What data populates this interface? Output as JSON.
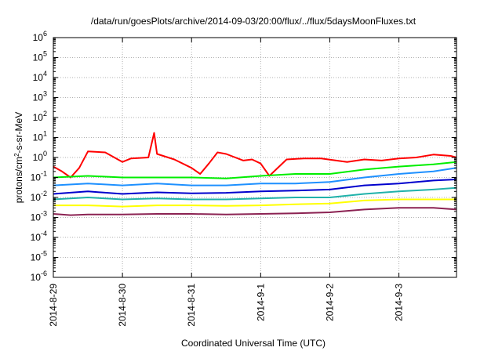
{
  "chart_data": {
    "type": "line",
    "title": "/data/run/goesPlots/archive/2014-09-03/20:00/flux/../flux/5daysMoonFluxes.txt",
    "xlabel": "Coordinated Universal Time (UTC)",
    "ylabel": {
      "prefix": "protons/cm",
      "sup": "2",
      "suffix": "-s-sr-MeV"
    },
    "y_scale": "log",
    "ylim": [
      1e-06,
      1000000.0
    ],
    "y_ticks": [
      {
        "value": 1e-06,
        "base": "10",
        "exp": "-6"
      },
      {
        "value": 1e-05,
        "base": "10",
        "exp": "-5"
      },
      {
        "value": 0.0001,
        "base": "10",
        "exp": "-4"
      },
      {
        "value": 0.001,
        "base": "10",
        "exp": "-3"
      },
      {
        "value": 0.01,
        "base": "10",
        "exp": "-2"
      },
      {
        "value": 0.1,
        "base": "10",
        "exp": "-1"
      },
      {
        "value": 1,
        "base": "10",
        "exp": "0"
      },
      {
        "value": 10,
        "base": "10",
        "exp": "1"
      },
      {
        "value": 100,
        "base": "10",
        "exp": "2"
      },
      {
        "value": 1000,
        "base": "10",
        "exp": "3"
      },
      {
        "value": 10000,
        "base": "10",
        "exp": "4"
      },
      {
        "value": 100000,
        "base": "10",
        "exp": "5"
      },
      {
        "value": 1000000,
        "base": "10",
        "exp": "6"
      }
    ],
    "x_ticks": [
      "2014-8-29",
      "2014-8-30",
      "2014-8-31",
      "2014-9-1",
      "2014-9-2",
      "2014-9-3"
    ],
    "xlim": [
      "2014-08-29T00:00",
      "2014-09-03T20:00"
    ],
    "grid": true,
    "legend": "none",
    "series": [
      {
        "color": "#ff0000",
        "points": [
          [
            "2014-08-29T00:00",
            0.35
          ],
          [
            "2014-08-29T03:00",
            0.2
          ],
          [
            "2014-08-29T06:00",
            0.1
          ],
          [
            "2014-08-29T09:00",
            0.3
          ],
          [
            "2014-08-29T12:00",
            2.0
          ],
          [
            "2014-08-29T18:00",
            1.8
          ],
          [
            "2014-08-30T00:00",
            0.6
          ],
          [
            "2014-08-30T03:00",
            0.9
          ],
          [
            "2014-08-30T09:00",
            1.0
          ],
          [
            "2014-08-30T11:00",
            17
          ],
          [
            "2014-08-30T12:00",
            1.5
          ],
          [
            "2014-08-30T18:00",
            0.8
          ],
          [
            "2014-08-31T00:00",
            0.3
          ],
          [
            "2014-08-31T03:00",
            0.15
          ],
          [
            "2014-08-31T06:00",
            0.5
          ],
          [
            "2014-08-31T09:00",
            1.8
          ],
          [
            "2014-08-31T12:00",
            1.5
          ],
          [
            "2014-08-31T18:00",
            0.7
          ],
          [
            "2014-08-31T21:00",
            0.8
          ],
          [
            "2014-09-01T00:00",
            0.5
          ],
          [
            "2014-09-01T03:00",
            0.12
          ],
          [
            "2014-09-01T09:00",
            0.8
          ],
          [
            "2014-09-01T15:00",
            0.9
          ],
          [
            "2014-09-01T21:00",
            0.9
          ],
          [
            "2014-09-02T06:00",
            0.6
          ],
          [
            "2014-09-02T12:00",
            0.8
          ],
          [
            "2014-09-02T18:00",
            0.7
          ],
          [
            "2014-09-03T00:00",
            0.9
          ],
          [
            "2014-09-03T06:00",
            1.0
          ],
          [
            "2014-09-03T12:00",
            1.4
          ],
          [
            "2014-09-03T18:00",
            1.2
          ],
          [
            "2014-09-03T20:00",
            1.0
          ]
        ]
      },
      {
        "color": "#00ee00",
        "points": [
          [
            "2014-08-29T00:00",
            0.1
          ],
          [
            "2014-08-29T12:00",
            0.12
          ],
          [
            "2014-08-30T00:00",
            0.1
          ],
          [
            "2014-08-30T12:00",
            0.1
          ],
          [
            "2014-08-31T00:00",
            0.1
          ],
          [
            "2014-08-31T12:00",
            0.09
          ],
          [
            "2014-09-01T00:00",
            0.12
          ],
          [
            "2014-09-01T12:00",
            0.15
          ],
          [
            "2014-09-02T00:00",
            0.15
          ],
          [
            "2014-09-02T12:00",
            0.25
          ],
          [
            "2014-09-03T00:00",
            0.35
          ],
          [
            "2014-09-03T12:00",
            0.45
          ],
          [
            "2014-09-03T20:00",
            0.6
          ]
        ]
      },
      {
        "color": "#1e90ff",
        "points": [
          [
            "2014-08-29T00:00",
            0.04
          ],
          [
            "2014-08-29T12:00",
            0.05
          ],
          [
            "2014-08-30T00:00",
            0.04
          ],
          [
            "2014-08-30T12:00",
            0.05
          ],
          [
            "2014-08-31T00:00",
            0.04
          ],
          [
            "2014-08-31T12:00",
            0.04
          ],
          [
            "2014-09-01T00:00",
            0.05
          ],
          [
            "2014-09-01T12:00",
            0.05
          ],
          [
            "2014-09-02T00:00",
            0.06
          ],
          [
            "2014-09-02T12:00",
            0.1
          ],
          [
            "2014-09-03T00:00",
            0.15
          ],
          [
            "2014-09-03T12:00",
            0.2
          ],
          [
            "2014-09-03T20:00",
            0.3
          ]
        ]
      },
      {
        "color": "#20b2aa",
        "points": [
          [
            "2014-08-29T00:00",
            0.008
          ],
          [
            "2014-08-29T12:00",
            0.01
          ],
          [
            "2014-08-30T00:00",
            0.008
          ],
          [
            "2014-08-30T12:00",
            0.009
          ],
          [
            "2014-08-31T00:00",
            0.008
          ],
          [
            "2014-08-31T12:00",
            0.008
          ],
          [
            "2014-09-01T00:00",
            0.009
          ],
          [
            "2014-09-01T12:00",
            0.01
          ],
          [
            "2014-09-02T00:00",
            0.01
          ],
          [
            "2014-09-02T12:00",
            0.015
          ],
          [
            "2014-09-03T00:00",
            0.02
          ],
          [
            "2014-09-03T12:00",
            0.025
          ],
          [
            "2014-09-03T20:00",
            0.03
          ]
        ]
      },
      {
        "color": "#0000cd",
        "points": [
          [
            "2014-08-29T00:00",
            0.015
          ],
          [
            "2014-08-29T12:00",
            0.02
          ],
          [
            "2014-08-30T00:00",
            0.015
          ],
          [
            "2014-08-30T12:00",
            0.018
          ],
          [
            "2014-08-31T00:00",
            0.016
          ],
          [
            "2014-08-31T12:00",
            0.017
          ],
          [
            "2014-09-01T00:00",
            0.02
          ],
          [
            "2014-09-01T12:00",
            0.022
          ],
          [
            "2014-09-02T00:00",
            0.025
          ],
          [
            "2014-09-02T12:00",
            0.04
          ],
          [
            "2014-09-03T00:00",
            0.05
          ],
          [
            "2014-09-03T12:00",
            0.07
          ],
          [
            "2014-09-03T20:00",
            0.08
          ]
        ]
      },
      {
        "color": "#ffff00",
        "points": [
          [
            "2014-08-29T00:00",
            0.004
          ],
          [
            "2014-08-29T12:00",
            0.004
          ],
          [
            "2014-08-30T00:00",
            0.0035
          ],
          [
            "2014-08-30T12:00",
            0.004
          ],
          [
            "2014-08-31T00:00",
            0.004
          ],
          [
            "2014-08-31T12:00",
            0.0038
          ],
          [
            "2014-09-01T00:00",
            0.004
          ],
          [
            "2014-09-01T12:00",
            0.0045
          ],
          [
            "2014-09-02T00:00",
            0.005
          ],
          [
            "2014-09-02T12:00",
            0.007
          ],
          [
            "2014-09-03T00:00",
            0.008
          ],
          [
            "2014-09-03T12:00",
            0.008
          ],
          [
            "2014-09-03T20:00",
            0.008
          ]
        ]
      },
      {
        "color": "#8b2252",
        "points": [
          [
            "2014-08-29T00:00",
            0.0015
          ],
          [
            "2014-08-29T06:00",
            0.0013
          ],
          [
            "2014-08-29T12:00",
            0.0014
          ],
          [
            "2014-08-30T00:00",
            0.0014
          ],
          [
            "2014-08-30T12:00",
            0.0015
          ],
          [
            "2014-08-31T00:00",
            0.0015
          ],
          [
            "2014-08-31T12:00",
            0.0014
          ],
          [
            "2014-09-01T00:00",
            0.0015
          ],
          [
            "2014-09-01T12:00",
            0.0016
          ],
          [
            "2014-09-02T00:00",
            0.0018
          ],
          [
            "2014-09-02T12:00",
            0.0025
          ],
          [
            "2014-09-03T00:00",
            0.003
          ],
          [
            "2014-09-03T12:00",
            0.003
          ],
          [
            "2014-09-03T20:00",
            0.0025
          ]
        ]
      }
    ]
  }
}
